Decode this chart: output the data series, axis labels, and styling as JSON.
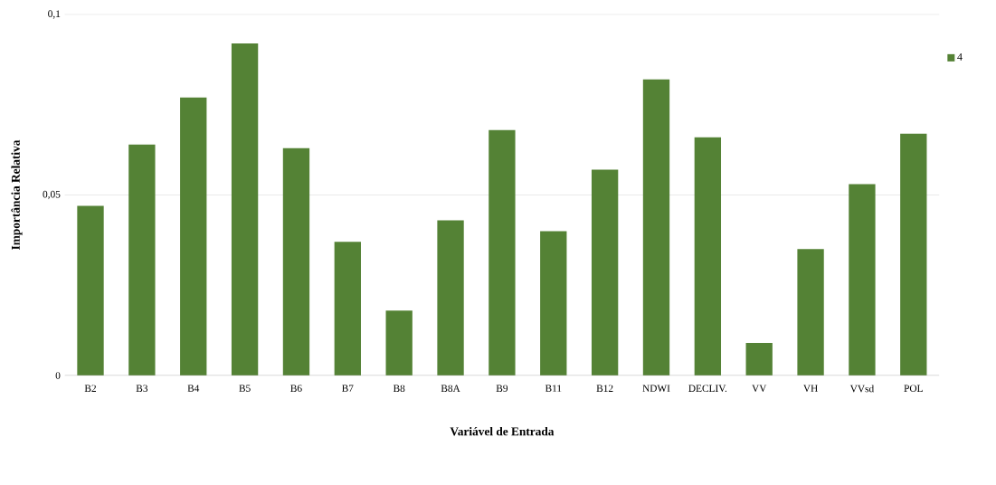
{
  "chart_data": {
    "type": "bar",
    "xlabel": "Variável de Entrada",
    "ylabel": "Importância Relativa",
    "categories": [
      "B2",
      "B3",
      "B4",
      "B5",
      "B6",
      "B7",
      "B8",
      "B8A",
      "B9",
      "B11",
      "B12",
      "NDWI",
      "DECLIV.",
      "VV",
      "VH",
      "VVsd",
      "POL"
    ],
    "series": [
      {
        "name": "4",
        "color": "#548235",
        "values": [
          0.047,
          0.064,
          0.077,
          0.092,
          0.063,
          0.037,
          0.018,
          0.043,
          0.068,
          0.04,
          0.057,
          0.082,
          0.066,
          0.009,
          0.035,
          0.053,
          0.067
        ]
      }
    ],
    "ylim": [
      0,
      0.1
    ],
    "yticks": [
      {
        "value": 0,
        "label": "0"
      },
      {
        "value": 0.05,
        "label": "0,05"
      },
      {
        "value": 0.1,
        "label": "0,1"
      }
    ],
    "grid": "y",
    "legend": "right"
  }
}
